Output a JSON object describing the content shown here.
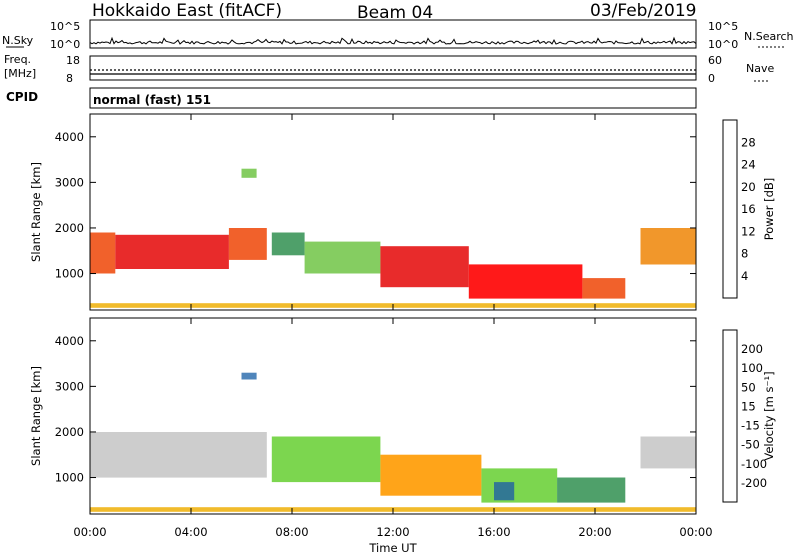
{
  "header": {
    "station": "Hokkaido East (fitACF)",
    "beam": "Beam 04",
    "date": "03/Feb/2019"
  },
  "strip": {
    "nsky_label": "N.Sky",
    "nsky_ticks": [
      "10^5",
      "10^0"
    ],
    "nsearch_label": "N.Search",
    "nsearch_ticks": [
      "10^5",
      "10^0"
    ],
    "freq_label_1": "Freq.",
    "freq_label_2": "[MHz]",
    "freq_ticks": [
      "18",
      "8"
    ],
    "nave_label": "Nave",
    "nave_ticks": [
      "60",
      "0"
    ],
    "cpid_label": "CPID",
    "cpid_value": "normal (fast) 151"
  },
  "colors": {
    "power_scale": [
      "#1428e6",
      "#3c78b4",
      "#3c965a",
      "#78c850",
      "#f0e614",
      "#f0b414",
      "#f08c14",
      "#f05014",
      "#e61414",
      "#ff0000"
    ],
    "velocity_scale": [
      "#ff0000",
      "#ff3000",
      "#ff7800",
      "#ffb400",
      "#c8c8c8",
      "#c8c8c8",
      "#6ed23c",
      "#3c965a",
      "#2a6e9a",
      "#1e3cc8"
    ]
  },
  "chart_data": [
    {
      "type": "heatmap",
      "name": "power",
      "ylabel": "Slant Range [km]",
      "ylim": [
        200,
        4500
      ],
      "y_ticks": [
        1000,
        2000,
        3000,
        4000
      ],
      "x_ticks": [
        "00:00",
        "04:00",
        "08:00",
        "12:00",
        "16:00",
        "20:00",
        "00:00"
      ],
      "xlim_hours": [
        0,
        24
      ],
      "colorbar": {
        "label": "Power [dB]",
        "range": [
          0,
          32
        ],
        "ticks": [
          4,
          8,
          12,
          16,
          20,
          24,
          28
        ]
      },
      "bands": [
        {
          "t0": 0.0,
          "t1": 1.0,
          "r0": 1000,
          "r1": 1900,
          "color": "#f05014"
        },
        {
          "t0": 1.0,
          "t1": 5.5,
          "r0": 1100,
          "r1": 1850,
          "color": "#e61414"
        },
        {
          "t0": 5.5,
          "t1": 7.0,
          "r0": 1300,
          "r1": 2000,
          "color": "#f05014"
        },
        {
          "t0": 7.2,
          "t1": 8.5,
          "r0": 1400,
          "r1": 1900,
          "color": "#3c965a"
        },
        {
          "t0": 8.5,
          "t1": 11.5,
          "r0": 1000,
          "r1": 1700,
          "color": "#78c850"
        },
        {
          "t0": 11.5,
          "t1": 15.0,
          "r0": 700,
          "r1": 1600,
          "color": "#e61414"
        },
        {
          "t0": 15.0,
          "t1": 19.5,
          "r0": 450,
          "r1": 1200,
          "color": "#ff0000"
        },
        {
          "t0": 19.5,
          "t1": 21.2,
          "r0": 450,
          "r1": 900,
          "color": "#f05014"
        },
        {
          "t0": 21.8,
          "t1": 24.0,
          "r0": 1200,
          "r1": 2000,
          "color": "#f08c14"
        },
        {
          "t0": 6.0,
          "t1": 6.6,
          "r0": 3100,
          "r1": 3300,
          "color": "#78c850"
        },
        {
          "t0": 0.0,
          "t1": 24.0,
          "r0": 250,
          "r1": 350,
          "color": "#f0b414"
        }
      ]
    },
    {
      "type": "heatmap",
      "name": "velocity",
      "ylabel": "Slant Range [km]",
      "ylim": [
        200,
        4500
      ],
      "y_ticks": [
        1000,
        2000,
        3000,
        4000
      ],
      "x_ticks": [
        "00:00",
        "04:00",
        "08:00",
        "12:00",
        "16:00",
        "20:00",
        "00:00"
      ],
      "xlim_hours": [
        0,
        24
      ],
      "xlabel": "Time UT",
      "colorbar": {
        "label": "Velocity [m s⁻¹]",
        "range": [
          -250,
          250
        ],
        "ticks": [
          -200,
          -100,
          -50,
          -15,
          15,
          50,
          100,
          200
        ]
      },
      "bands": [
        {
          "t0": 0.0,
          "t1": 7.0,
          "r0": 1000,
          "r1": 2000,
          "color": "#c8c8c8"
        },
        {
          "t0": 7.2,
          "t1": 11.5,
          "r0": 900,
          "r1": 1900,
          "color": "#6ed23c"
        },
        {
          "t0": 11.5,
          "t1": 15.5,
          "r0": 600,
          "r1": 1500,
          "color": "#ff9a00"
        },
        {
          "t0": 15.5,
          "t1": 18.5,
          "r0": 450,
          "r1": 1200,
          "color": "#6ed23c"
        },
        {
          "t0": 16.0,
          "t1": 16.8,
          "r0": 500,
          "r1": 900,
          "color": "#2a6e9a"
        },
        {
          "t0": 18.5,
          "t1": 21.2,
          "r0": 450,
          "r1": 1000,
          "color": "#3c965a"
        },
        {
          "t0": 21.8,
          "t1": 24.0,
          "r0": 1200,
          "r1": 1900,
          "color": "#c8c8c8"
        },
        {
          "t0": 6.0,
          "t1": 6.6,
          "r0": 3150,
          "r1": 3300,
          "color": "#3c78b4"
        },
        {
          "t0": 0.0,
          "t1": 24.0,
          "r0": 250,
          "r1": 350,
          "color": "#f0b414"
        }
      ]
    }
  ]
}
